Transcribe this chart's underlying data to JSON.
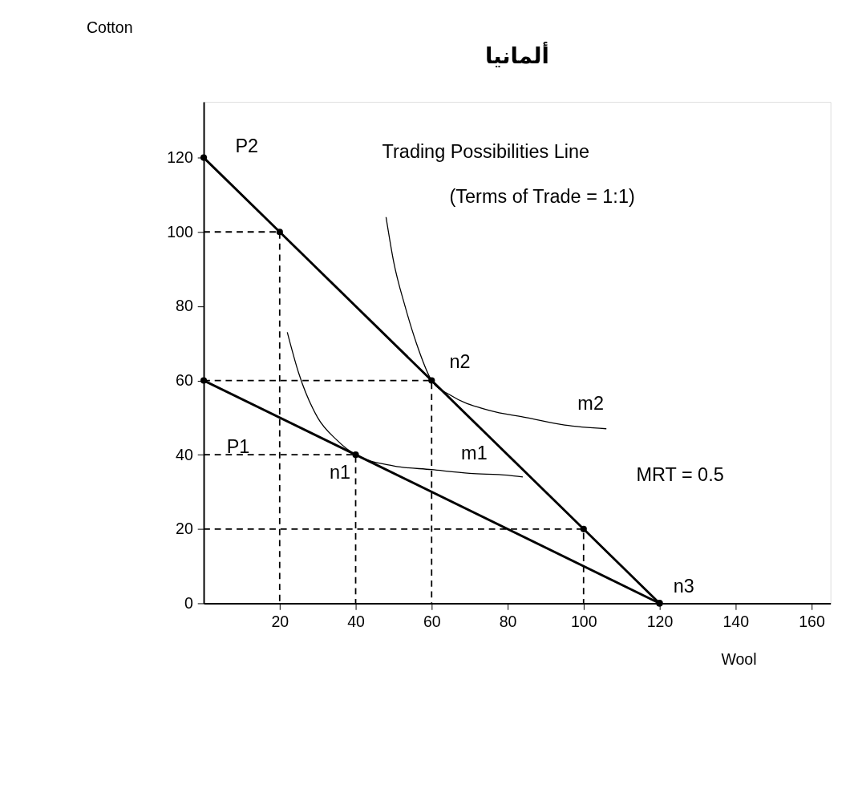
{
  "chart_data": {
    "type": "line",
    "title": "ألمانيا",
    "xlabel": "Wool",
    "ylabel": "Cotton",
    "xlim": [
      0,
      165
    ],
    "ylim": [
      0,
      135
    ],
    "xticks": [
      20,
      40,
      60,
      80,
      100,
      120,
      140,
      160
    ],
    "yticks": [
      0,
      20,
      40,
      60,
      80,
      100,
      120
    ],
    "grid": false,
    "series": [
      {
        "color": "#000000",
        "line_style": "solid",
        "marker": "circle",
        "x": [
          0,
          20,
          60,
          100,
          120
        ],
        "values": [
          120,
          100,
          60,
          20,
          0
        ]
      },
      {
        "color": "#000000",
        "line_style": "solid",
        "marker": "circle",
        "x": [
          0,
          40,
          120
        ],
        "values": [
          60,
          40,
          0
        ]
      },
      {
        "color": "#000000",
        "line_style": "solid",
        "marker": "none",
        "x": [
          22,
          25,
          30,
          35,
          40,
          50,
          60,
          70,
          80,
          84
        ],
        "values": [
          73,
          62,
          50,
          44,
          40,
          37,
          36,
          35,
          34.5,
          34
        ]
      },
      {
        "color": "#000000",
        "line_style": "solid",
        "marker": "none",
        "x": [
          48,
          50,
          53,
          56,
          60,
          65,
          75,
          85,
          95,
          106
        ],
        "values": [
          104,
          92,
          80,
          70,
          60,
          56,
          52,
          50,
          48,
          47
        ]
      },
      {
        "color": "#000000",
        "line_style": "dashed",
        "marker": "none",
        "x": [
          0,
          20,
          20
        ],
        "values": [
          100,
          100,
          0
        ]
      },
      {
        "color": "#000000",
        "line_style": "dashed",
        "marker": "none",
        "x": [
          0,
          60,
          60
        ],
        "values": [
          60,
          60,
          0
        ]
      },
      {
        "color": "#000000",
        "line_style": "dashed",
        "marker": "none",
        "x": [
          0,
          40,
          40
        ],
        "values": [
          40,
          40,
          0
        ]
      },
      {
        "color": "#000000",
        "line_style": "dashed",
        "marker": "none",
        "x": [
          0,
          100,
          100
        ],
        "values": [
          20,
          20,
          0
        ]
      }
    ],
    "annotations": [
      {
        "text": "P2",
        "x": 0,
        "y": 120
      },
      "Trading Possibilities Line",
      "(Terms of Trade = 1:1)",
      {
        "text": "n2",
        "x": 60,
        "y": 60
      },
      {
        "text": "m2",
        "x": 106,
        "y": 47
      },
      {
        "text": "m1",
        "x": 84,
        "y": 34
      },
      {
        "text": "n1",
        "x": 40,
        "y": 40
      },
      "P1",
      "MRT = 0.5",
      {
        "text": "n3",
        "x": 120,
        "y": 0
      }
    ]
  }
}
